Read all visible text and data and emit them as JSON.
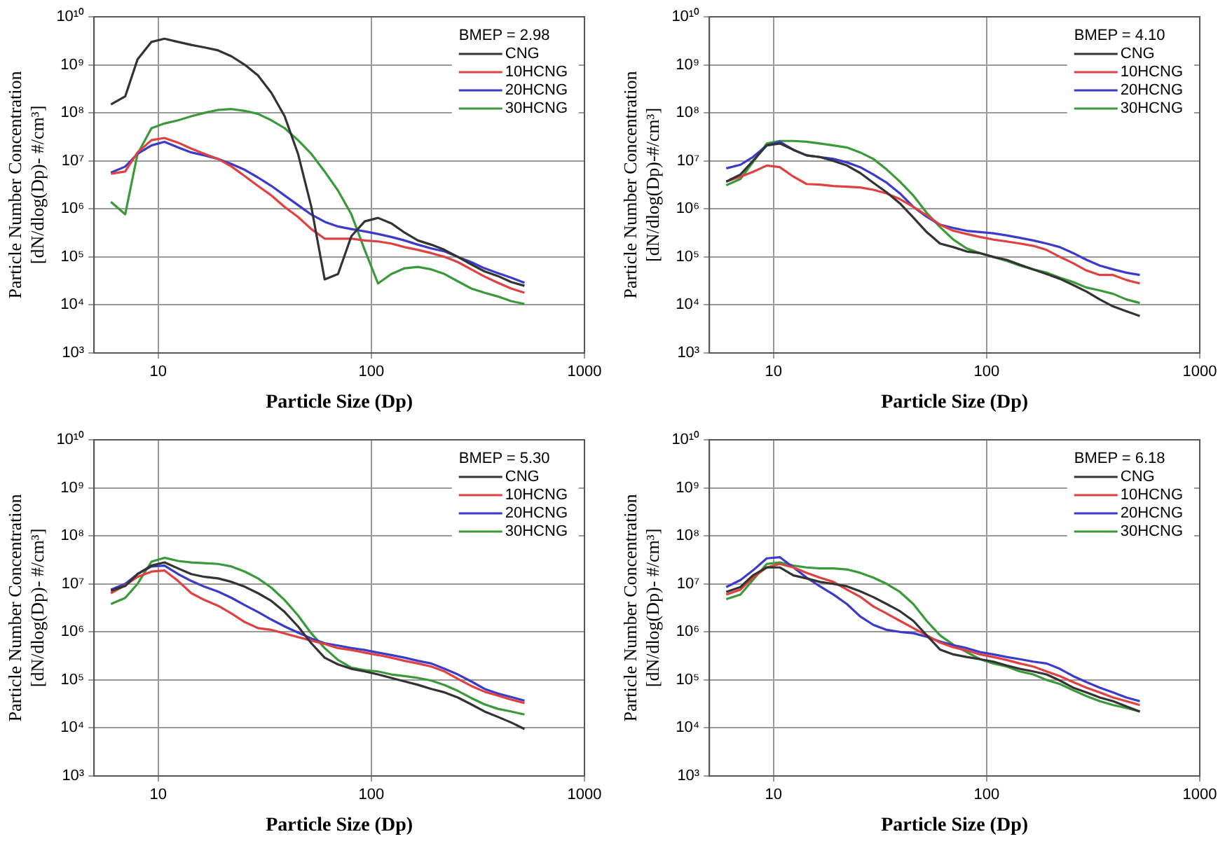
{
  "chart_data": [
    {
      "type": "line",
      "xlabel": "Particle Size (Dp)",
      "ylabel": "Particle Number Concentration\n[dN/dlog(Dp)- #/cm³]",
      "legend_title": "BMEP = 2.98",
      "legend": "top right",
      "grid": true,
      "log": "xy",
      "line_style": "solid",
      "xlim": [
        5,
        1000
      ],
      "xticks": [
        10,
        100,
        1000
      ],
      "ylim": [
        1000,
        10000000000
      ],
      "yticks": [
        {
          "value": 1000,
          "label": "10³"
        },
        {
          "value": 10000,
          "label": "10⁴"
        },
        {
          "value": 100000,
          "label": "10⁵"
        },
        {
          "value": 1000000,
          "label": "10⁶"
        },
        {
          "value": 10000000,
          "label": "10⁷"
        },
        {
          "value": 100000000,
          "label": "10⁸"
        },
        {
          "value": 1000000000,
          "label": "10⁹"
        },
        {
          "value": 10000000000,
          "label": "10¹⁰"
        }
      ],
      "x": [
        6,
        7,
        8,
        9.3,
        10.7,
        12.4,
        14.3,
        16.5,
        19.1,
        22.1,
        25.5,
        29.4,
        34,
        39.2,
        45.3,
        52.3,
        60.4,
        69.8,
        80.6,
        93.1,
        107.5,
        124.1,
        143.3,
        165.5,
        191.1,
        220.7,
        254.8,
        294.3,
        339.8,
        392.4,
        453.1,
        523.3
      ],
      "series": [
        {
          "name": "CNG",
          "color": "#333333",
          "values": [
            150000000.0,
            220000000.0,
            1300000000.0,
            3000000000.0,
            3500000000.0,
            3000000000.0,
            2600000000.0,
            2300000000.0,
            2000000000.0,
            1500000000.0,
            1000000000.0,
            600000000.0,
            260000000.0,
            85000000.0,
            14000000.0,
            1100000.0,
            34000.0,
            44000.0,
            270000.0,
            550000.0,
            650000.0,
            500000.0,
            320000.0,
            220000.0,
            180000.0,
            140000.0,
            100000.0,
            70000.0,
            50000.0,
            40000.0,
            30000.0,
            25000.0
          ]
        },
        {
          "name": "10HCNG",
          "color": "#e04040",
          "values": [
            5400000.0,
            6000000.0,
            15000000.0,
            27000000.0,
            30000000.0,
            24000000.0,
            18000000.0,
            14000000.0,
            11000000.0,
            7600000.0,
            4800000.0,
            3000000.0,
            1900000.0,
            1100000.0,
            680000.0,
            380000.0,
            240000.0,
            240000.0,
            240000.0,
            220000.0,
            210000.0,
            190000.0,
            160000.0,
            140000.0,
            120000.0,
            100000.0,
            78000.0,
            55000.0,
            39000.0,
            29000.0,
            22000.0,
            18000.0
          ]
        },
        {
          "name": "20HCNG",
          "color": "#3a3acc",
          "values": [
            5700000.0,
            7600000.0,
            14000000.0,
            21000000.0,
            25000000.0,
            19000000.0,
            15000000.0,
            13000000.0,
            11000000.0,
            8600000.0,
            6500000.0,
            4500000.0,
            3000000.0,
            1900000.0,
            1200000.0,
            760000.0,
            540000.0,
            430000.0,
            380000.0,
            340000.0,
            300000.0,
            260000.0,
            220000.0,
            180000.0,
            150000.0,
            130000.0,
            100000.0,
            78000.0,
            58000.0,
            46000.0,
            37000.0,
            29000.0
          ]
        },
        {
          "name": "30HCNG",
          "color": "#3a9a3a",
          "values": [
            1400000.0,
            770000.0,
            14000000.0,
            48000000.0,
            60000000.0,
            70000000.0,
            85000000.0,
            100000000.0,
            115000000.0,
            120000000.0,
            110000000.0,
            95000000.0,
            70000000.0,
            48000000.0,
            27000000.0,
            14000000.0,
            6000000.0,
            2400000.0,
            770000.0,
            140000.0,
            28000.0,
            44000.0,
            58000.0,
            62000.0,
            55000.0,
            44000.0,
            31000.0,
            22000.0,
            18000.0,
            15000.0,
            12000.0,
            10500.0
          ]
        }
      ]
    },
    {
      "type": "line",
      "xlabel": "Particle Size (Dp)",
      "ylabel": "Particle Number Concentration\n[dN/dlog(Dp)-#/cm³]",
      "legend_title": "BMEP = 4.10",
      "legend": "top right",
      "grid": true,
      "log": "xy",
      "line_style": "solid",
      "xlim": [
        5,
        1000
      ],
      "xticks": [
        10,
        100,
        1000
      ],
      "ylim": [
        1000,
        10000000000
      ],
      "yticks": [
        {
          "value": 1000,
          "label": "10³"
        },
        {
          "value": 10000,
          "label": "10⁴"
        },
        {
          "value": 100000,
          "label": "10⁵"
        },
        {
          "value": 1000000,
          "label": "10⁶"
        },
        {
          "value": 10000000,
          "label": "10⁷"
        },
        {
          "value": 100000000,
          "label": "10⁸"
        },
        {
          "value": 1000000000,
          "label": "10⁹"
        },
        {
          "value": 10000000000,
          "label": "10¹⁰"
        }
      ],
      "x": [
        6,
        7,
        8,
        9.3,
        10.7,
        12.4,
        14.3,
        16.5,
        19.1,
        22.1,
        25.5,
        29.4,
        34,
        39.2,
        45.3,
        52.3,
        60.4,
        69.8,
        80.6,
        93.1,
        107.5,
        124.1,
        143.3,
        165.5,
        191.1,
        220.7,
        254.8,
        294.3,
        339.8,
        392.4,
        453.1,
        523.3
      ],
      "series": [
        {
          "name": "CNG",
          "color": "#333333",
          "values": [
            3700000.0,
            5200000.0,
            10000000.0,
            21000000.0,
            23000000.0,
            17000000.0,
            13000000.0,
            12000000.0,
            10000000.0,
            8000000.0,
            5600000.0,
            3500000.0,
            2200000.0,
            1300000.0,
            660000.0,
            330000.0,
            190000.0,
            160000.0,
            130000.0,
            120000.0,
            100000.0,
            87000.0,
            69000.0,
            55000.0,
            44000.0,
            35000.0,
            26000.0,
            19000.0,
            13000.0,
            9300.0,
            7400.0,
            5900.0
          ]
        },
        {
          "name": "10HCNG",
          "color": "#e04040",
          "values": [
            3700000.0,
            4700000.0,
            5900000.0,
            8000000.0,
            7400000.0,
            4700000.0,
            3300000.0,
            3200000.0,
            3000000.0,
            2900000.0,
            2800000.0,
            2500000.0,
            2100000.0,
            1600000.0,
            1100000.0,
            740000.0,
            470000.0,
            350000.0,
            300000.0,
            260000.0,
            230000.0,
            210000.0,
            190000.0,
            170000.0,
            140000.0,
            100000.0,
            74000.0,
            52000.0,
            42000.0,
            42000.0,
            33000.0,
            28000.0
          ]
        },
        {
          "name": "20HCNG",
          "color": "#3a3acc",
          "values": [
            7000000.0,
            8300000.0,
            12000000.0,
            21000000.0,
            25000000.0,
            17000000.0,
            13000000.0,
            12000000.0,
            11000000.0,
            9300000.0,
            7400000.0,
            5200000.0,
            3500000.0,
            2100000.0,
            1100000.0,
            690000.0,
            470000.0,
            400000.0,
            350000.0,
            330000.0,
            310000.0,
            280000.0,
            250000.0,
            220000.0,
            190000.0,
            160000.0,
            120000.0,
            87000.0,
            66000.0,
            55000.0,
            47000.0,
            42000.0
          ]
        },
        {
          "name": "30HCNG",
          "color": "#3a9a3a",
          "values": [
            3100000.0,
            4200000.0,
            9300000.0,
            23000000.0,
            26000000.0,
            26000000.0,
            25000000.0,
            23000000.0,
            21000000.0,
            19000000.0,
            15000000.0,
            11000000.0,
            6600000.0,
            3700000.0,
            1900000.0,
            830000.0,
            420000.0,
            230000.0,
            150000.0,
            120000.0,
            100000.0,
            83000.0,
            66000.0,
            55000.0,
            47000.0,
            37000.0,
            30000.0,
            23000.0,
            20000.0,
            17000.0,
            13000.0,
            11000.0
          ]
        }
      ]
    },
    {
      "type": "line",
      "xlabel": "Particle Size (Dp)",
      "ylabel": "Particle Number Concentration\n[dN/dlog(Dp)- #/cm³]",
      "legend_title": "BMEP = 5.30",
      "legend": "top right",
      "grid": true,
      "log": "xy",
      "line_style": "solid",
      "xlim": [
        5,
        1000
      ],
      "xticks": [
        10,
        100,
        1000
      ],
      "ylim": [
        1000,
        10000000000
      ],
      "yticks": [
        {
          "value": 1000,
          "label": "10³"
        },
        {
          "value": 10000,
          "label": "10⁴"
        },
        {
          "value": 100000,
          "label": "10⁵"
        },
        {
          "value": 1000000,
          "label": "10⁶"
        },
        {
          "value": 10000000,
          "label": "10⁷"
        },
        {
          "value": 100000000,
          "label": "10⁸"
        },
        {
          "value": 1000000000,
          "label": "10⁹"
        },
        {
          "value": 10000000000,
          "label": "10¹⁰"
        }
      ],
      "x": [
        6,
        7,
        8,
        9.3,
        10.7,
        12.4,
        14.3,
        16.5,
        19.1,
        22.1,
        25.5,
        29.4,
        34,
        39.2,
        45.3,
        52.3,
        60.4,
        69.8,
        80.6,
        93.1,
        107.5,
        124.1,
        143.3,
        165.5,
        191.1,
        220.7,
        254.8,
        294.3,
        339.8,
        392.4,
        453.1,
        523.3
      ],
      "series": [
        {
          "name": "CNG",
          "color": "#333333",
          "values": [
            7200000.0,
            9000000.0,
            16000000.0,
            24000000.0,
            28000000.0,
            21000000.0,
            16000000.0,
            14000000.0,
            13000000.0,
            11000000.0,
            8700000.0,
            6400000.0,
            4400000.0,
            2600000.0,
            1300000.0,
            580000.0,
            290000.0,
            210000.0,
            170000.0,
            150000.0,
            130000.0,
            110000.0,
            93000.0,
            79000.0,
            65000.0,
            55000.0,
            43000.0,
            31000.0,
            22000.0,
            17000.0,
            13000.0,
            9500.0
          ]
        },
        {
          "name": "10HCNG",
          "color": "#e04040",
          "values": [
            6400000.0,
            9400000.0,
            14000000.0,
            18000000.0,
            19000000.0,
            11500000.0,
            6400000.0,
            4600000.0,
            3500000.0,
            2400000.0,
            1600000.0,
            1200000.0,
            1100000.0,
            930000.0,
            780000.0,
            660000.0,
            560000.0,
            460000.0,
            420000.0,
            370000.0,
            330000.0,
            290000.0,
            250000.0,
            220000.0,
            190000.0,
            150000.0,
            105000.0,
            75000.0,
            57000.0,
            47000.0,
            39000.0,
            33000.0
          ]
        },
        {
          "name": "20HCNG",
          "color": "#3a3acc",
          "values": [
            7600000.0,
            10000000.0,
            16000000.0,
            23000000.0,
            24000000.0,
            16000000.0,
            11500000.0,
            8700000.0,
            6900000.0,
            5100000.0,
            3600000.0,
            2600000.0,
            1800000.0,
            1300000.0,
            970000.0,
            730000.0,
            580000.0,
            520000.0,
            460000.0,
            420000.0,
            370000.0,
            330000.0,
            290000.0,
            250000.0,
            220000.0,
            170000.0,
            130000.0,
            93000.0,
            65000.0,
            52000.0,
            44000.0,
            37000.0
          ]
        },
        {
          "name": "30HCNG",
          "color": "#3a9a3a",
          "values": [
            3800000.0,
            5100000.0,
            10000000.0,
            29000000.0,
            35000000.0,
            30000000.0,
            28000000.0,
            27000000.0,
            26000000.0,
            23000000.0,
            18000000.0,
            13000000.0,
            8300000.0,
            4600000.0,
            2200000.0,
            930000.0,
            460000.0,
            260000.0,
            180000.0,
            160000.0,
            150000.0,
            130000.0,
            120000.0,
            110000.0,
            97000.0,
            78000.0,
            59000.0,
            42000.0,
            31000.0,
            25000.0,
            22000.0,
            19000.0
          ]
        }
      ]
    },
    {
      "type": "line",
      "xlabel": "Particle Size (Dp)",
      "ylabel": "Particle Number Concentration\n[dN/dlog(Dp)- #/cm³]",
      "legend_title": "BMEP = 6.18",
      "legend": "top right",
      "grid": true,
      "log": "xy",
      "line_style": "solid",
      "xlim": [
        5,
        1000
      ],
      "xticks": [
        10,
        100,
        1000
      ],
      "ylim": [
        1000,
        10000000000
      ],
      "yticks": [
        {
          "value": 1000,
          "label": "10³"
        },
        {
          "value": 10000,
          "label": "10⁴"
        },
        {
          "value": 100000,
          "label": "10⁵"
        },
        {
          "value": 1000000,
          "label": "10⁶"
        },
        {
          "value": 10000000,
          "label": "10⁷"
        },
        {
          "value": 100000000,
          "label": "10⁸"
        },
        {
          "value": 1000000000,
          "label": "10⁹"
        },
        {
          "value": 10000000000,
          "label": "10¹⁰"
        }
      ],
      "x": [
        6,
        7,
        8,
        9.3,
        10.7,
        12.4,
        14.3,
        16.5,
        19.1,
        22.1,
        25.5,
        29.4,
        34,
        39.2,
        45.3,
        52.3,
        60.4,
        69.8,
        80.6,
        93.1,
        107.5,
        124.1,
        143.3,
        165.5,
        191.1,
        220.7,
        254.8,
        294.3,
        339.8,
        392.4,
        453.1,
        523.3
      ],
      "series": [
        {
          "name": "CNG",
          "color": "#333333",
          "values": [
            6800000.0,
            8600000.0,
            15000000.0,
            22000000.0,
            22000000.0,
            15000000.0,
            13000000.0,
            11000000.0,
            10000000.0,
            8900000.0,
            7000000.0,
            5300000.0,
            3800000.0,
            2700000.0,
            1700000.0,
            850000.0,
            430000.0,
            340000.0,
            300000.0,
            270000.0,
            240000.0,
            200000.0,
            170000.0,
            150000.0,
            130000.0,
            97000.0,
            69000.0,
            55000.0,
            43000.0,
            36000.0,
            28000.0,
            22000.0
          ]
        },
        {
          "name": "10HCNG",
          "color": "#e04040",
          "values": [
            6000000.0,
            7600000.0,
            13500000.0,
            22000000.0,
            26000000.0,
            22000000.0,
            17000000.0,
            13500000.0,
            11000000.0,
            7600000.0,
            5400000.0,
            3400000.0,
            2400000.0,
            1700000.0,
            1200000.0,
            850000.0,
            600000.0,
            480000.0,
            410000.0,
            340000.0,
            300000.0,
            260000.0,
            220000.0,
            190000.0,
            150000.0,
            120000.0,
            90000.0,
            69000.0,
            55000.0,
            43000.0,
            36000.0,
            30000.0
          ]
        },
        {
          "name": "20HCNG",
          "color": "#3a3acc",
          "values": [
            8600000.0,
            12000000.0,
            19000000.0,
            34000000.0,
            36000000.0,
            22000000.0,
            13500000.0,
            8900000.0,
            6000000.0,
            3800000.0,
            2100000.0,
            1400000.0,
            1100000.0,
            1000000.0,
            940000.0,
            790000.0,
            630000.0,
            530000.0,
            460000.0,
            380000.0,
            340000.0,
            300000.0,
            270000.0,
            240000.0,
            220000.0,
            170000.0,
            120000.0,
            90000.0,
            69000.0,
            55000.0,
            43000.0,
            36000.0
          ]
        },
        {
          "name": "30HCNG",
          "color": "#3a9a3a",
          "values": [
            4800000.0,
            6000000.0,
            12000000.0,
            26000000.0,
            28000000.0,
            24000000.0,
            22000000.0,
            21000000.0,
            21000000.0,
            20000000.0,
            17000000.0,
            13500000.0,
            10000000.0,
            6800000.0,
            3800000.0,
            1700000.0,
            850000.0,
            540000.0,
            380000.0,
            270000.0,
            220000.0,
            190000.0,
            150000.0,
            130000.0,
            100000.0,
            82000.0,
            61000.0,
            46000.0,
            36000.0,
            30000.0,
            26000.0,
            22000.0
          ]
        }
      ]
    }
  ]
}
